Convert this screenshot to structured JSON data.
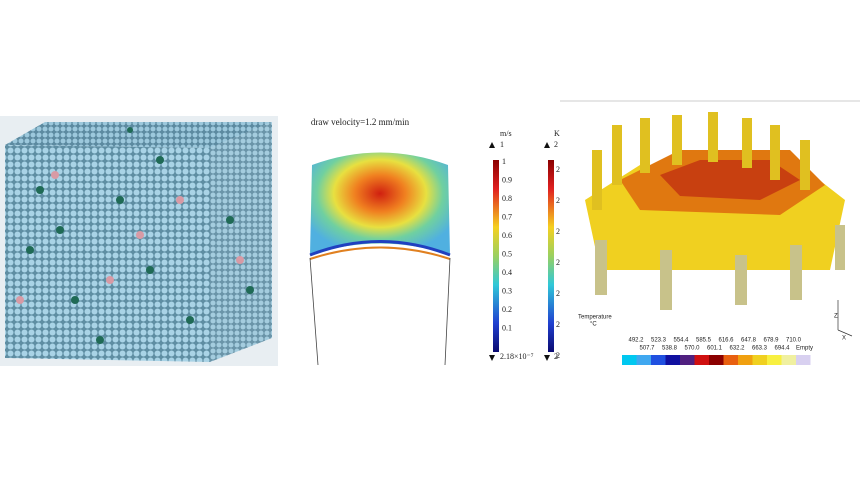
{
  "middle": {
    "title": "draw velocity=1.2 mm/min",
    "velocity_bar": {
      "unit": "m/s",
      "top": "1",
      "labels": [
        "1",
        "0.9",
        "0.8",
        "0.7",
        "0.6",
        "0.5",
        "0.4",
        "0.3",
        "0.2",
        "0.1"
      ],
      "bottom": "2.18×10⁻⁷"
    },
    "temperature_bar": {
      "unit": "K",
      "top": "2",
      "labels": [
        "2",
        "2",
        "2",
        "2",
        "2",
        "2",
        "2"
      ],
      "bottom": "2"
    }
  },
  "right": {
    "legend_title": "Temperature",
    "legend_unit": "°C",
    "upper_labels": [
      "492.2",
      "523.3",
      "554.4",
      "585.5",
      "616.6",
      "647.8",
      "678.9",
      "710.0"
    ],
    "lower_labels": [
      "507.7",
      "538.8",
      "570.0",
      "601.1",
      "632.2",
      "663.3",
      "694.4",
      "Empty"
    ],
    "axes": [
      "Z",
      "X"
    ]
  }
}
